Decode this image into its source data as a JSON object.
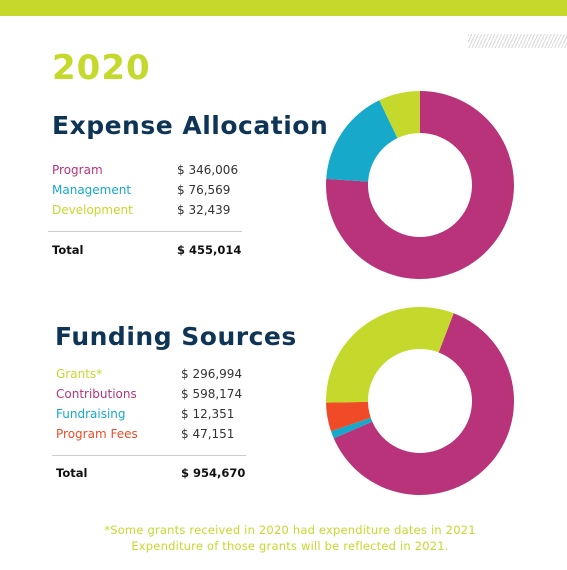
{
  "colors": {
    "accent": "#c5d92c",
    "navy": "#0f3556",
    "magenta": "#b8337a",
    "teal": "#17a9c9",
    "orange": "#ee4b26"
  },
  "year": "2020",
  "expense": {
    "title": "Expense Allocation",
    "rows": [
      {
        "label": "Program",
        "value": "$ 346,006",
        "color": "#b8337a"
      },
      {
        "label": "Management",
        "value": "$ 76,569",
        "color": "#17a9c9"
      },
      {
        "label": "Development",
        "value": "$ 32,439",
        "color": "#c5d92c"
      }
    ],
    "total_label": "Total",
    "total_value": "$ 455,014"
  },
  "funding": {
    "title": "Funding Sources",
    "rows": [
      {
        "label": "Grants*",
        "value": "$ 296,994",
        "color": "#c5d92c"
      },
      {
        "label": "Contributions",
        "value": "$ 598,174",
        "color": "#b8337a"
      },
      {
        "label": "Fundraising",
        "value": "$ 12,351",
        "color": "#17a9c9"
      },
      {
        "label": "Program Fees",
        "value": "$ 47,151",
        "color": "#ee4b26"
      }
    ],
    "total_label": "Total",
    "total_value": "$ 954,670"
  },
  "footnote": {
    "line1": "*Some grants received in 2020 had expenditure dates in 2021",
    "line2": "Expenditure of those grants will be reflected in 2021."
  },
  "chart_data": [
    {
      "type": "pie",
      "title": "Expense Allocation",
      "categories": [
        "Program",
        "Management",
        "Development"
      ],
      "values": [
        346006,
        76569,
        32439
      ],
      "colors": [
        "#b8337a",
        "#17a9c9",
        "#c5d92c"
      ]
    },
    {
      "type": "pie",
      "title": "Funding Sources",
      "categories": [
        "Contributions",
        "Fundraising",
        "Program Fees",
        "Grants*"
      ],
      "values": [
        598174,
        12351,
        47151,
        296994
      ],
      "colors": [
        "#b8337a",
        "#17a9c9",
        "#ee4b26",
        "#c5d92c"
      ]
    }
  ]
}
